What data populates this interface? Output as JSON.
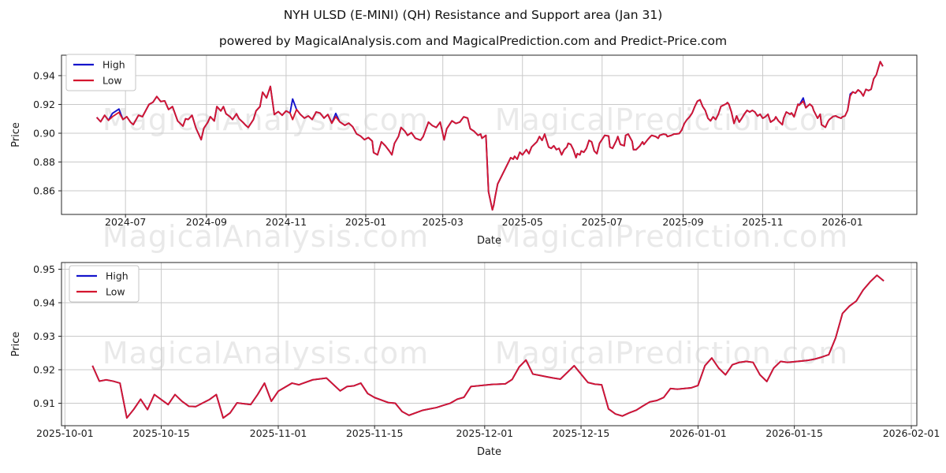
{
  "page": {
    "title": "NYH ULSD (E-MINI) (QH) Resistance and Support area (Jan 31)",
    "subtitle": "powered by MagicalAnalysis.com and MagicalPrediction.com and Predict-Price.com"
  },
  "watermarks": {
    "left": "MagicalAnalysis.com",
    "right": "MagicalPrediction.com"
  },
  "colors": {
    "high": "#1414cc",
    "low": "#d4162f",
    "grid": "#c9c9c9",
    "axis": "#262626",
    "text": "#1a1a1a"
  },
  "legend": {
    "items": [
      {
        "key": "high",
        "label": "High"
      },
      {
        "key": "low",
        "label": "Low"
      }
    ]
  },
  "chart_data": [
    {
      "type": "line",
      "name": "resistance-support-long-range",
      "xlabel": "Date",
      "ylabel": "Price",
      "legend_position": "upper left",
      "grid": true,
      "x_axis": {
        "epoch": "2024-05-13",
        "domain_days": [
          0,
          655
        ],
        "ticks": [
          {
            "day": 49,
            "label": "2024-07"
          },
          {
            "day": 111,
            "label": "2024-09"
          },
          {
            "day": 172,
            "label": "2024-11"
          },
          {
            "day": 233,
            "label": "2025-01"
          },
          {
            "day": 292,
            "label": "2025-03"
          },
          {
            "day": 353,
            "label": "2025-05"
          },
          {
            "day": 414,
            "label": "2025-07"
          },
          {
            "day": 476,
            "label": "2025-09"
          },
          {
            "day": 537,
            "label": "2025-11"
          },
          {
            "day": 598,
            "label": "2026-01"
          }
        ]
      },
      "y_axis": {
        "domain": [
          0.8436,
          0.9542
        ],
        "ticks": [
          {
            "v": 0.86,
            "label": "0.86"
          },
          {
            "v": 0.88,
            "label": "0.88"
          },
          {
            "v": 0.9,
            "label": "0.90"
          },
          {
            "v": 0.92,
            "label": "0.92"
          },
          {
            "v": 0.94,
            "label": "0.94"
          }
        ]
      },
      "series": {
        "low": {
          "name": "Low",
          "days": [
            27,
            30,
            33,
            36,
            39,
            44,
            47,
            50,
            53,
            55,
            59,
            62,
            67,
            70,
            73,
            76,
            79,
            82,
            85,
            89,
            93,
            95,
            97,
            100,
            103,
            105,
            107,
            109,
            112,
            114,
            117,
            119,
            122,
            124,
            126,
            129,
            131,
            134,
            136,
            139,
            141,
            143,
            147,
            149,
            152,
            154,
            157,
            160,
            163,
            166,
            169,
            172,
            175,
            177,
            180,
            183,
            186,
            189,
            192,
            195,
            198,
            201,
            204,
            207,
            210,
            213,
            217,
            220,
            223,
            226,
            229,
            232,
            235,
            238,
            239,
            242,
            245,
            248,
            251,
            253,
            255,
            258,
            260,
            263,
            265,
            268,
            271,
            275,
            277,
            281,
            284,
            287,
            290,
            293,
            295,
            299,
            302,
            305,
            308,
            311,
            313,
            316,
            319,
            321,
            322,
            325,
            327,
            330,
            331,
            332,
            334,
            336,
            338,
            340,
            342,
            344,
            346,
            347,
            349,
            351,
            353,
            356,
            358,
            360,
            362,
            364,
            366,
            368,
            370,
            373,
            375,
            377,
            379,
            381,
            383,
            385,
            387,
            388,
            390,
            392,
            394,
            395,
            397,
            398,
            400,
            402,
            404,
            406,
            408,
            410,
            412,
            414,
            416,
            419,
            420,
            422,
            425,
            426,
            428,
            431,
            432,
            434,
            437,
            438,
            440,
            443,
            445,
            446,
            449,
            451,
            452,
            455,
            457,
            458,
            461,
            463,
            464,
            467,
            469,
            470,
            473,
            475,
            477,
            479,
            481,
            483,
            485,
            487,
            489,
            491,
            493,
            495,
            497,
            499,
            501,
            503,
            505,
            507,
            509,
            510,
            511,
            513,
            515,
            517,
            519,
            521,
            523,
            525,
            527,
            529,
            531,
            533,
            535,
            537,
            539,
            541,
            543,
            546,
            547,
            549,
            552,
            553,
            555,
            558,
            559,
            561,
            564,
            565,
            568,
            570,
            573,
            575,
            576,
            579,
            581,
            582,
            585,
            587,
            588,
            591,
            593,
            594,
            597,
            598,
            600,
            602,
            604,
            606,
            608,
            610,
            612,
            614,
            616,
            618,
            620,
            622,
            624,
            626,
            627,
            629
          ],
          "values": [
            0.911,
            0.908,
            0.9125,
            0.909,
            0.9115,
            0.9145,
            0.9095,
            0.9115,
            0.9075,
            0.906,
            0.9125,
            0.9115,
            0.92,
            0.9215,
            0.9255,
            0.922,
            0.9225,
            0.9165,
            0.9185,
            0.9085,
            0.905,
            0.91,
            0.9095,
            0.9125,
            0.9035,
            0.8995,
            0.8955,
            0.9035,
            0.9075,
            0.9115,
            0.9085,
            0.9185,
            0.9155,
            0.9185,
            0.9135,
            0.9115,
            0.9095,
            0.9135,
            0.91,
            0.9075,
            0.9055,
            0.904,
            0.9095,
            0.9155,
            0.9185,
            0.9285,
            0.9245,
            0.9325,
            0.913,
            0.915,
            0.9125,
            0.9155,
            0.914,
            0.9095,
            0.9165,
            0.913,
            0.9105,
            0.912,
            0.9095,
            0.9147,
            0.914,
            0.9105,
            0.913,
            0.907,
            0.9115,
            0.908,
            0.9055,
            0.907,
            0.9045,
            0.8995,
            0.898,
            0.8955,
            0.897,
            0.8945,
            0.8865,
            0.885,
            0.894,
            0.8913,
            0.8877,
            0.885,
            0.893,
            0.8977,
            0.904,
            0.9013,
            0.8985,
            0.9004,
            0.8965,
            0.8952,
            0.8977,
            0.9077,
            0.9053,
            0.904,
            0.9077,
            0.8954,
            0.9031,
            0.9086,
            0.9068,
            0.9077,
            0.9114,
            0.9105,
            0.9031,
            0.9013,
            0.8985,
            0.8994,
            0.8965,
            0.8985,
            0.8593,
            0.8468,
            0.8501,
            0.8556,
            0.8648,
            0.8684,
            0.872,
            0.8757,
            0.8793,
            0.883,
            0.882,
            0.884,
            0.882,
            0.8868,
            0.885,
            0.8886,
            0.8858,
            0.8904,
            0.8922,
            0.894,
            0.8977,
            0.895,
            0.8994,
            0.8904,
            0.8895,
            0.8913,
            0.8886,
            0.8895,
            0.885,
            0.8886,
            0.8904,
            0.893,
            0.8922,
            0.8886,
            0.883,
            0.8858,
            0.885,
            0.8877,
            0.8868,
            0.8895,
            0.895,
            0.894,
            0.8877,
            0.8858,
            0.893,
            0.8957,
            0.8985,
            0.898,
            0.8904,
            0.8895,
            0.895,
            0.8977,
            0.8922,
            0.8913,
            0.8985,
            0.8994,
            0.8943,
            0.8886,
            0.8886,
            0.8913,
            0.894,
            0.8922,
            0.8957,
            0.8977,
            0.8985,
            0.8977,
            0.8965,
            0.8985,
            0.8994,
            0.899,
            0.8977,
            0.8985,
            0.8994,
            0.8994,
            0.8998,
            0.9022,
            0.9068,
            0.9095,
            0.9114,
            0.9141,
            0.9186,
            0.9223,
            0.9232,
            0.9186,
            0.9159,
            0.9104,
            0.9086,
            0.9114,
            0.9095,
            0.9132,
            0.9186,
            0.9195,
            0.9204,
            0.9213,
            0.9202,
            0.9147,
            0.9068,
            0.912,
            0.9077,
            0.9104,
            0.9134,
            0.9159,
            0.9147,
            0.9159,
            0.9147,
            0.912,
            0.9132,
            0.9104,
            0.9114,
            0.9132,
            0.9077,
            0.9095,
            0.9114,
            0.9086,
            0.9059,
            0.9104,
            0.9147,
            0.9132,
            0.9141,
            0.9114,
            0.9202,
            0.9195,
            0.9223,
            0.9177,
            0.9202,
            0.9186,
            0.9159,
            0.9104,
            0.9132,
            0.9059,
            0.9041,
            0.9082,
            0.9095,
            0.9117,
            0.912,
            0.9114,
            0.9104,
            0.9114,
            0.912,
            0.9159,
            0.9259,
            0.9287,
            0.9278,
            0.9301,
            0.9287,
            0.9259,
            0.9305,
            0.9296,
            0.9305,
            0.9378,
            0.9405,
            0.9469,
            0.9497,
            0.9465
          ]
        },
        "high": {
          "name": "High",
          "note": "coincides with Low except brief spikes above",
          "spike_points": [
            [
              39,
              0.9138
            ],
            [
              44,
              0.9168
            ],
            [
              177,
              0.9238
            ],
            [
              210,
              0.9138
            ],
            [
              568,
              0.9245
            ],
            [
              604,
              0.9272
            ]
          ]
        }
      }
    },
    {
      "type": "line",
      "name": "resistance-support-recent-daily",
      "xlabel": "Date",
      "ylabel": "Price",
      "legend_position": "upper left",
      "grid": true,
      "x_axis": {
        "epoch": "2025-10-01",
        "domain_days": [
          -0.5,
          123.8
        ],
        "ticks": [
          {
            "day": 0,
            "label": "2025-10-01"
          },
          {
            "day": 14,
            "label": "2025-10-15"
          },
          {
            "day": 31,
            "label": "2025-11-01"
          },
          {
            "day": 45,
            "label": "2025-11-15"
          },
          {
            "day": 61,
            "label": "2025-12-01"
          },
          {
            "day": 75,
            "label": "2025-12-15"
          },
          {
            "day": 92,
            "label": "2026-01-01"
          },
          {
            "day": 106,
            "label": "2026-01-15"
          },
          {
            "day": 123,
            "label": "2026-02-01"
          }
        ]
      },
      "y_axis": {
        "domain": [
          0.9033,
          0.952
        ],
        "ticks": [
          {
            "v": 0.91,
            "label": "0.91"
          },
          {
            "v": 0.92,
            "label": "0.92"
          },
          {
            "v": 0.93,
            "label": "0.93"
          },
          {
            "v": 0.94,
            "label": "0.94"
          },
          {
            "v": 0.95,
            "label": "0.95"
          }
        ]
      },
      "series": {
        "low": {
          "name": "Low",
          "days": [
            4,
            5,
            6,
            7,
            8,
            9,
            10,
            11,
            12,
            13,
            15,
            16,
            17,
            18,
            19,
            21,
            22,
            23,
            24,
            25,
            27,
            28,
            29,
            30,
            31,
            33,
            34,
            36,
            38,
            40,
            41,
            42,
            43,
            44,
            45,
            47,
            48,
            49,
            50,
            52,
            53,
            54,
            55,
            56,
            57,
            58,
            59,
            60,
            61,
            62,
            63,
            64,
            65,
            66,
            67,
            68,
            69,
            70,
            71,
            72,
            73,
            74,
            75,
            76,
            77,
            78,
            79,
            80,
            81,
            82,
            83,
            84,
            85,
            86,
            87,
            88,
            89,
            90,
            91,
            92,
            93,
            94,
            95,
            96,
            97,
            98,
            99,
            100,
            101,
            102,
            103,
            104,
            105,
            106,
            107,
            108,
            109,
            110,
            111,
            112,
            113,
            114,
            115,
            116,
            117,
            118,
            119
          ],
          "values": [
            0.9212,
            0.9166,
            0.917,
            0.9166,
            0.916,
            0.9056,
            0.9082,
            0.9112,
            0.9081,
            0.9126,
            0.9096,
            0.9126,
            0.9106,
            0.9091,
            0.909,
            0.9111,
            0.9126,
            0.9056,
            0.9071,
            0.9101,
            0.9096,
            0.9126,
            0.916,
            0.9106,
            0.9136,
            0.916,
            0.9155,
            0.917,
            0.9175,
            0.9137,
            0.915,
            0.9152,
            0.916,
            0.9129,
            0.9117,
            0.9102,
            0.91,
            0.9075,
            0.9064,
            0.9079,
            0.9083,
            0.9087,
            0.9094,
            0.91,
            0.9112,
            0.9118,
            0.915,
            0.9152,
            0.9154,
            0.9156,
            0.9157,
            0.9158,
            0.9171,
            0.9208,
            0.9229,
            0.9187,
            0.9183,
            0.9179,
            0.9175,
            0.9172,
            0.9192,
            0.9212,
            0.9187,
            0.9162,
            0.9157,
            0.9155,
            0.9083,
            0.9068,
            0.9062,
            0.9071,
            0.9079,
            0.9092,
            0.9104,
            0.9108,
            0.9117,
            0.9144,
            0.9142,
            0.9144,
            0.9146,
            0.9153,
            0.9212,
            0.9235,
            0.9205,
            0.9185,
            0.9215,
            0.9222,
            0.9225,
            0.9222,
            0.9185,
            0.9165,
            0.9205,
            0.9225,
            0.9222,
            0.9224,
            0.9226,
            0.9228,
            0.9232,
            0.9238,
            0.9245,
            0.9295,
            0.9368,
            0.939,
            0.9405,
            0.9438,
            0.9462,
            0.9482,
            0.9465
          ]
        },
        "high": {
          "name": "High",
          "note": "coincides with Low (hidden underneath)",
          "spike_points": []
        }
      }
    }
  ]
}
